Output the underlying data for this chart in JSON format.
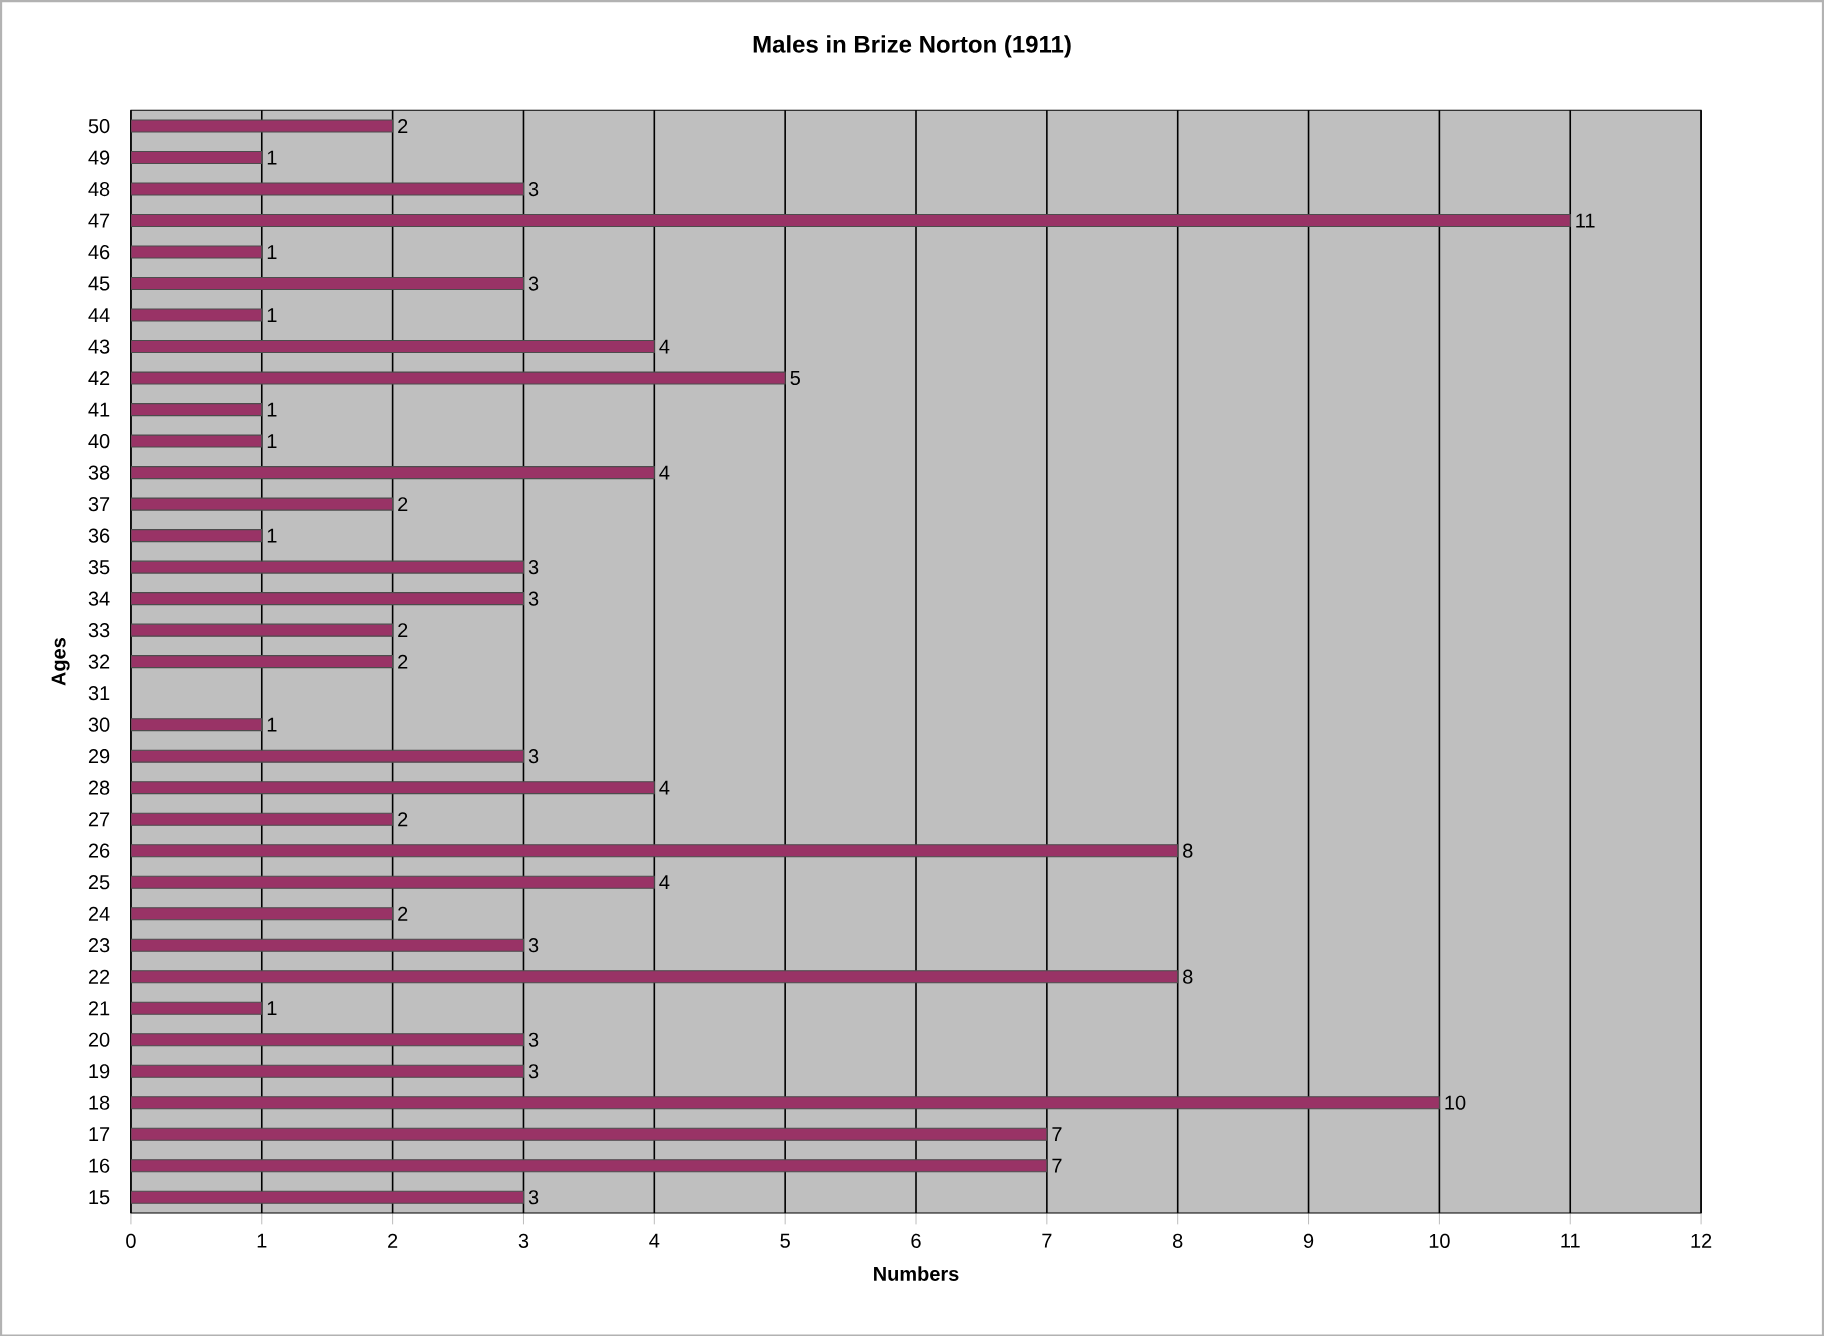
{
  "chart_data": {
    "type": "bar",
    "orientation": "horizontal",
    "title": "Males in Brize Norton (1911)",
    "xlabel": "Numbers",
    "ylabel": "Ages",
    "categories": [
      "50",
      "49",
      "48",
      "47",
      "46",
      "45",
      "44",
      "43",
      "42",
      "41",
      "40",
      "38",
      "37",
      "36",
      "35",
      "34",
      "33",
      "32",
      "31",
      "30",
      "29",
      "28",
      "27",
      "26",
      "25",
      "24",
      "23",
      "22",
      "21",
      "20",
      "19",
      "18",
      "17",
      "16",
      "15"
    ],
    "values": [
      2,
      1,
      3,
      11,
      1,
      3,
      1,
      4,
      5,
      1,
      1,
      4,
      2,
      1,
      3,
      3,
      2,
      2,
      null,
      1,
      3,
      4,
      2,
      8,
      4,
      2,
      3,
      8,
      1,
      3,
      3,
      10,
      7,
      7,
      3
    ],
    "color": "#993366",
    "xlim": [
      0,
      12
    ],
    "xticks": [
      0,
      1,
      2,
      3,
      4,
      5,
      6,
      7,
      8,
      9,
      10,
      11,
      12
    ],
    "grid": "x",
    "data_labels": true
  }
}
